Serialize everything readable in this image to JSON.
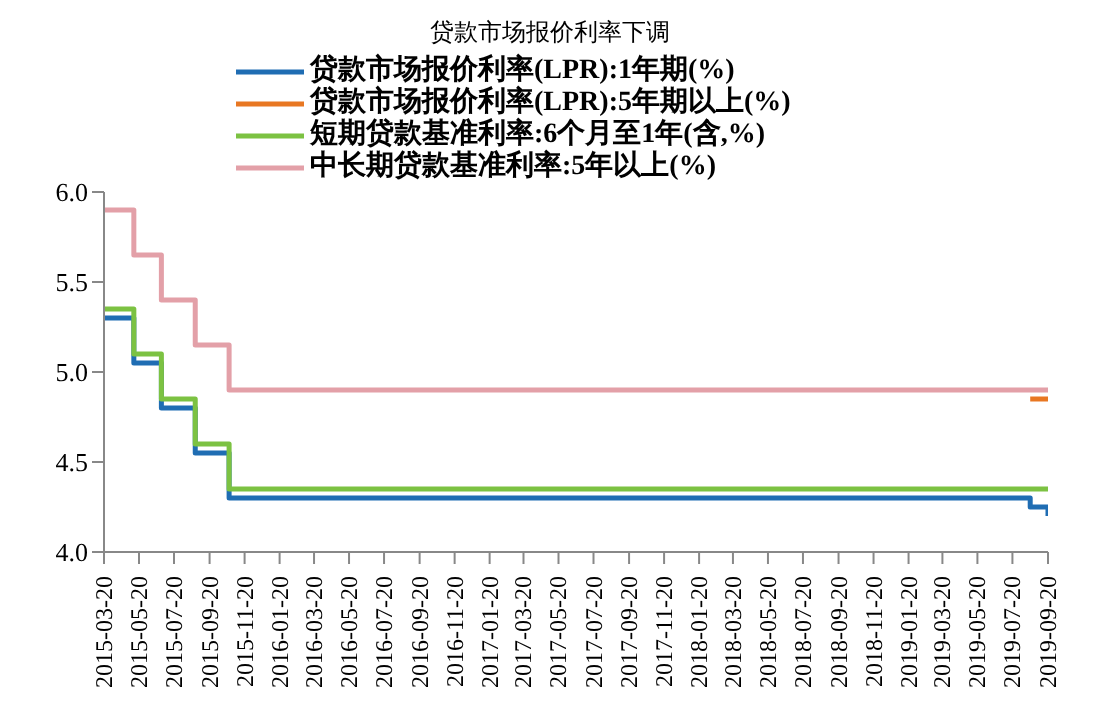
{
  "chart_data": {
    "type": "step",
    "title": "贷款市场报价利率下调",
    "series": [
      {
        "name": "贷款市场报价利率(LPR):1年期(%)",
        "color": "#1f6db3",
        "x": [
          "2015-03-20",
          "2015-05-11",
          "2015-06-28",
          "2015-08-26",
          "2015-10-24",
          "2019-08-20",
          "2019-09-20"
        ],
        "values": [
          5.3,
          5.05,
          4.8,
          4.55,
          4.3,
          4.25,
          4.2
        ]
      },
      {
        "name": "贷款市场报价利率(LPR):5年期以上(%)",
        "color": "#e87722",
        "x": [
          "2019-08-20",
          "2019-09-20"
        ],
        "values": [
          4.85,
          4.85
        ]
      },
      {
        "name": "短期贷款基准利率:6个月至1年(含,%)",
        "color": "#7cc242",
        "x": [
          "2015-03-20",
          "2015-05-11",
          "2015-06-28",
          "2015-08-26",
          "2015-10-24",
          "2019-09-20"
        ],
        "values": [
          5.35,
          5.1,
          4.85,
          4.6,
          4.35,
          4.35
        ]
      },
      {
        "name": "中长期贷款基准利率:5年以上(%)",
        "color": "#e3a0a8",
        "x": [
          "2015-03-20",
          "2015-05-11",
          "2015-06-28",
          "2015-08-26",
          "2015-10-24",
          "2019-09-20"
        ],
        "values": [
          5.9,
          5.65,
          5.4,
          5.15,
          4.9,
          4.9
        ]
      }
    ],
    "xlim": [
      "2015-03-20",
      "2019-09-20"
    ],
    "xticks": [
      "2015-03-20",
      "2015-05-20",
      "2015-07-20",
      "2015-09-20",
      "2015-11-20",
      "2016-01-20",
      "2016-03-20",
      "2016-05-20",
      "2016-07-20",
      "2016-09-20",
      "2016-11-20",
      "2017-01-20",
      "2017-03-20",
      "2017-05-20",
      "2017-07-20",
      "2017-09-20",
      "2017-11-20",
      "2018-01-20",
      "2018-03-20",
      "2018-05-20",
      "2018-07-20",
      "2018-09-20",
      "2018-11-20",
      "2019-01-20",
      "2019-03-20",
      "2019-05-20",
      "2019-07-20",
      "2019-09-20"
    ],
    "ylim": [
      4.0,
      6.0
    ],
    "yticks": [
      {
        "value": 4,
        "label": "4.0"
      },
      {
        "value": 4.5,
        "label": "4.5"
      },
      {
        "value": 5,
        "label": "5.0"
      },
      {
        "value": 5.5,
        "label": "5.5"
      },
      {
        "value": 6,
        "label": "6.0"
      }
    ],
    "grid": false,
    "legend": "top",
    "marker": "none",
    "line_style": "solid"
  }
}
